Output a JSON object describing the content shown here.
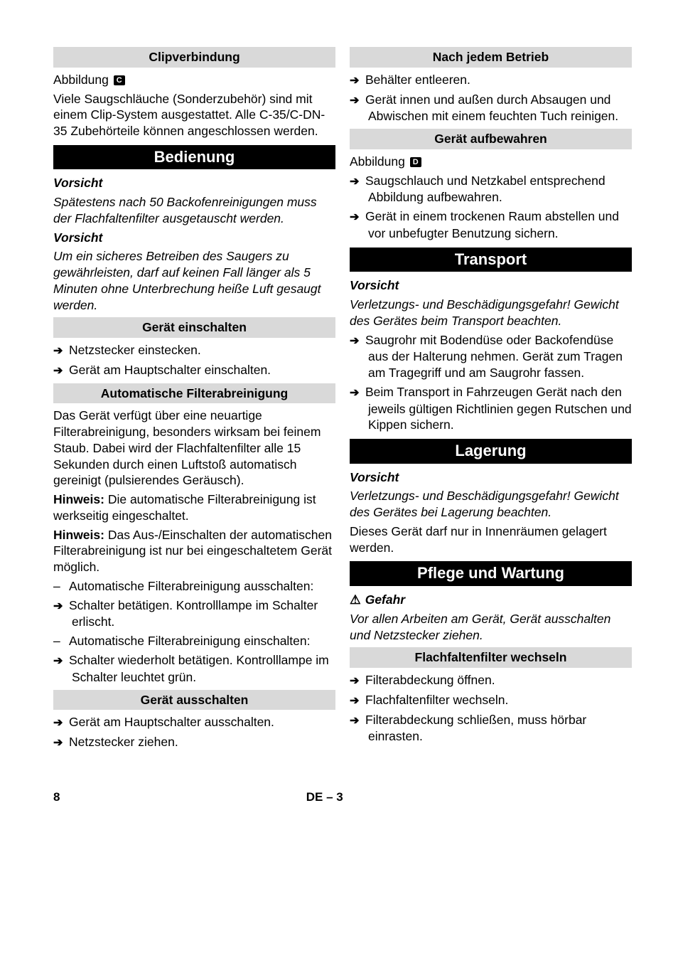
{
  "left": {
    "clip_title": "Clipverbindung",
    "abbildung": "Abbildung",
    "abb_icon_c": "C",
    "clip_text": "Viele Saugschläuche (Sonderzubehör) sind mit einem Clip-System ausgestattet. Alle C-35/C-DN-35 Zubehörteile können angeschlossen werden.",
    "bedienung_title": "Bedienung",
    "vorsicht1_label": "Vorsicht",
    "vorsicht1_text": "Spätestens nach 50 Backofenreinigungen muss der Flachfaltenfilter ausgetauscht werden.",
    "vorsicht2_label": "Vorsicht",
    "vorsicht2_text": "Um ein sicheres Betreiben des Saugers zu gewährleisten, darf auf keinen Fall länger als 5 Minuten ohne Unterbrechung heiße Luft gesaugt werden.",
    "einschalten_title": "Gerät einschalten",
    "ein_item1": "Netzstecker einstecken.",
    "ein_item2": "Gerät am Hauptschalter einschalten.",
    "autoclean_title": "Automatische Filterabreinigung",
    "autoclean_text": "Das Gerät verfügt über eine neuartige Filterabreinigung, besonders wirksam bei feinem Staub. Dabei wird der Flachfaltenfilter alle 15 Sekunden durch einen Luftstoß automatisch gereinigt (pulsierendes Geräusch).",
    "hinweis1_label": "Hinweis:",
    "hinweis1_text": " Die automatische Filterabreinigung ist werkseitig eingeschaltet.",
    "hinweis2_label": "Hinweis:",
    "hinweis2_text": " Das Aus-/Einschalten der automatischen Filterabreinigung ist nur bei eingeschaltetem Gerät möglich.",
    "ac_d1": "Automatische Filterabreinigung ausschalten:",
    "ac_a1": "Schalter betätigen. Kontrolllampe im Schalter erlischt.",
    "ac_d2": "Automatische Filterabreinigung einschalten:",
    "ac_a2": "Schalter wiederholt betätigen. Kontrolllampe im Schalter leuchtet grün.",
    "ausschalten_title": "Gerät ausschalten",
    "aus_item1": "Gerät am Hauptschalter ausschalten.",
    "aus_item2": "Netzstecker ziehen."
  },
  "right": {
    "nach_title": "Nach jedem Betrieb",
    "nach_item1": "Behälter entleeren.",
    "nach_item2": "Gerät innen und außen durch Absaugen und Abwischen mit einem feuchten Tuch reinigen.",
    "aufbewahren_title": "Gerät aufbewahren",
    "abbildung": "Abbildung",
    "abb_icon_d": "D",
    "aufb_item1": "Saugschlauch und Netzkabel entsprechend Abbildung aufbewahren.",
    "aufb_item2": "Gerät in einem trockenen Raum abstellen und vor unbefugter Benutzung sichern.",
    "transport_title": "Transport",
    "vorsicht_label": "Vorsicht",
    "transport_warn": "Verletzungs- und Beschädigungsgefahr! Gewicht des Gerätes beim Transport beachten.",
    "tr_item1": "Saugrohr mit Bodendüse oder Backofendüse aus der Halterung nehmen. Gerät zum Tragen am Tragegriff und am Saugrohr fassen.",
    "tr_item2": "Beim Transport in Fahrzeugen Gerät nach den jeweils gültigen Richtlinien gegen Rutschen und Kippen sichern.",
    "lagerung_title": "Lagerung",
    "lager_vorsicht": "Vorsicht",
    "lager_warn": "Verletzungs- und Beschädigungsgefahr! Gewicht des Gerätes bei Lagerung beachten.",
    "lager_text": "Dieses Gerät darf nur in Innenräumen gelagert werden.",
    "pflege_title": "Pflege und Wartung",
    "gefahr_label": "Gefahr",
    "gefahr_text": "Vor allen Arbeiten am Gerät, Gerät ausschalten und Netzstecker ziehen.",
    "ffilter_title": "Flachfaltenfilter wechseln",
    "ff_item1": "Filterabdeckung öffnen.",
    "ff_item2": "Flachfaltenfilter wechseln.",
    "ff_item3": "Filterabdeckung schließen, muss hörbar einrasten."
  },
  "footer": {
    "page": "8",
    "center": "DE – 3"
  }
}
